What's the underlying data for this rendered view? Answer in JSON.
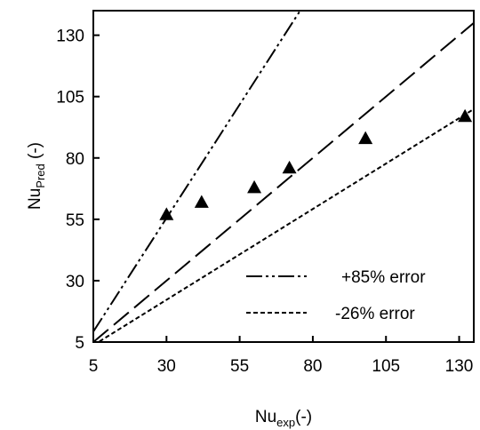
{
  "chart_data": {
    "type": "scatter",
    "xlabel": {
      "main": "Nu",
      "sub": "exp",
      "suffix": "(-)"
    },
    "ylabel": {
      "main": "Nu",
      "sub": "Pred",
      "suffix": " (-)"
    },
    "xlim": [
      5,
      135
    ],
    "ylim": [
      5,
      140
    ],
    "xticks": [
      5,
      30,
      55,
      80,
      105,
      130
    ],
    "yticks": [
      5,
      30,
      55,
      80,
      105,
      130
    ],
    "grid": false,
    "legend_position": "bottom-right",
    "series": [
      {
        "kind": "points",
        "marker": "triangle",
        "color": "#000000",
        "points": [
          {
            "x": 30,
            "y": 57
          },
          {
            "x": 42,
            "y": 62
          },
          {
            "x": 60,
            "y": 68
          },
          {
            "x": 72,
            "y": 76
          },
          {
            "x": 98,
            "y": 88
          },
          {
            "x": 132,
            "y": 97
          }
        ]
      },
      {
        "kind": "line",
        "style": "dash-dot-dot",
        "slope": 1.85,
        "color": "#000000",
        "legend": "+85% error"
      },
      {
        "kind": "line",
        "style": "long-dash",
        "slope": 1.0,
        "color": "#000000"
      },
      {
        "kind": "line",
        "style": "short-dash",
        "slope": 0.74,
        "color": "#000000",
        "legend": "-26% error"
      }
    ]
  }
}
